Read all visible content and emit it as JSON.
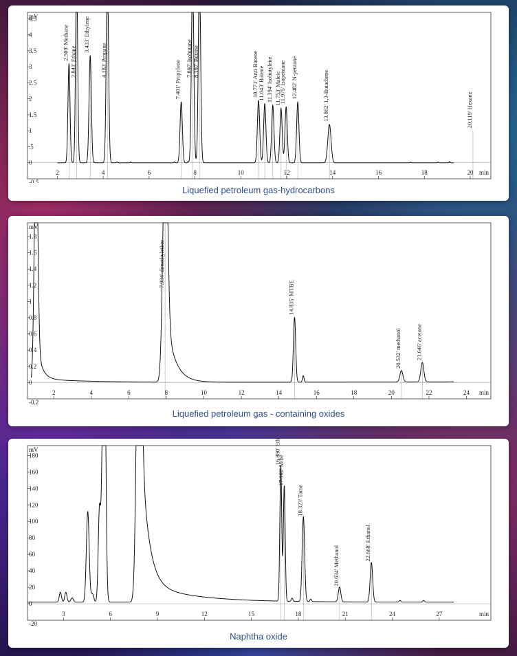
{
  "chart_data": [
    {
      "type": "line",
      "title": "Liquefied petroleum gas-hydrocarbons",
      "ylabel": "mV",
      "xlabel": "min",
      "xlim": [
        0.7,
        20.9
      ],
      "ylim": [
        -0.5,
        4.7
      ],
      "x_ticks": [
        2,
        4,
        6,
        8,
        10,
        12,
        14,
        16,
        18,
        20
      ],
      "y_ticks": [
        0,
        0.5,
        1,
        1.5,
        2,
        2.5,
        3,
        3.5,
        4,
        4.5
      ],
      "y_tick_labels": [
        "0",
        ".5",
        "1",
        "1.5",
        "2",
        "2.5",
        "3",
        "3.5",
        "4",
        "4.5"
      ],
      "y_bottom_label": "-0.5",
      "peaks": [
        {
          "time": 2.509,
          "height": 3.1,
          "width": 0.045,
          "label": "2.509' Methane"
        },
        {
          "time": 2.841,
          "height": 6.0,
          "width": 0.045,
          "label": "2.841' Ethane"
        },
        {
          "time": 3.433,
          "height": 3.35,
          "width": 0.05,
          "label": "3.433' Ethylene"
        },
        {
          "time": 4.183,
          "height": 6.0,
          "width": 0.05,
          "label": "4.183' Propane"
        },
        {
          "time": 7.401,
          "height": 1.9,
          "width": 0.05,
          "label": "7.401' Propylene"
        },
        {
          "time": 7.897,
          "height": 6.0,
          "width": 0.05,
          "label": "7.897' Isobutane"
        },
        {
          "time": 8.197,
          "height": 6.0,
          "width": 0.05,
          "label": "8.197' Butane"
        },
        {
          "time": 10.771,
          "height": 1.95,
          "width": 0.05,
          "label": "10.771' Anti Butene"
        },
        {
          "time": 11.043,
          "height": 1.85,
          "width": 0.05,
          "label": "11.043' Butene"
        },
        {
          "time": 11.394,
          "height": 1.8,
          "width": 0.05,
          "label": "11.394' Isobutylene"
        },
        {
          "time": 11.753,
          "height": 1.7,
          "width": 0.05,
          "label": "11.753' Maleic"
        },
        {
          "time": 11.975,
          "height": 1.75,
          "width": 0.05,
          "label": "11.975' Isopentane"
        },
        {
          "time": 12.482,
          "height": 1.9,
          "width": 0.05,
          "label": "12.482' N-pentane"
        },
        {
          "time": 13.862,
          "height": 1.2,
          "width": 0.07,
          "label": "13.862' 1,3-Butadiene"
        },
        {
          "time": 20.119,
          "height": 1.0,
          "width": 0.1,
          "label": "20.119' Hexane"
        }
      ]
    },
    {
      "type": "line",
      "title": "Liquefied petroleum gas - containing oxides",
      "ylabel": "mV",
      "xlabel": "min",
      "xlim": [
        0.6,
        25.3
      ],
      "ylim": [
        -0.2,
        1.97
      ],
      "x_ticks": [
        2,
        4,
        6,
        8,
        10,
        12,
        14,
        16,
        18,
        20,
        22,
        24
      ],
      "y_ticks": [
        0,
        0.2,
        0.4,
        0.6,
        0.8,
        1,
        1.2,
        1.4,
        1.6,
        1.8
      ],
      "y_tick_labels": [
        "0",
        "0.2",
        "0.4",
        "0.6",
        "0.8",
        "1",
        "1.2",
        "1.4",
        "1.6",
        "1.8"
      ],
      "y_bottom_label": "-0.2",
      "peaks": [
        {
          "time": 7.934,
          "height": 3.0,
          "width": 0.12,
          "label": "7.934' dimethylether"
        },
        {
          "time": 14.835,
          "height": 0.8,
          "width": 0.06,
          "label": "14.835' MTBE"
        },
        {
          "time": 20.532,
          "height": 0.14,
          "width": 0.08,
          "label": "20.532' methanol"
        },
        {
          "time": 21.646,
          "height": 0.24,
          "width": 0.08,
          "label": "21.646' acetone"
        }
      ]
    },
    {
      "type": "line",
      "title": "Naphtha oxide",
      "ylabel": "mV",
      "xlabel": "min",
      "xlim": [
        0.7,
        30.3
      ],
      "ylim": [
        -20,
        192
      ],
      "x_ticks": [
        3,
        6,
        9,
        12,
        15,
        18,
        21,
        24,
        27
      ],
      "y_ticks": [
        0,
        20,
        40,
        60,
        80,
        100,
        120,
        140,
        160,
        180
      ],
      "y_tick_labels": [
        "0",
        "20",
        "40",
        "60",
        "80",
        "100",
        "120",
        "140",
        "160",
        "180"
      ],
      "y_bottom_label": "-20",
      "peaks": [
        {
          "time": 16.88,
          "height": 165,
          "width": 0.06,
          "label": "16.880' Etbe"
        },
        {
          "time": 17.102,
          "height": 140,
          "width": 0.06,
          "label": "17.102' Mtbe"
        },
        {
          "time": 18.323,
          "height": 103,
          "width": 0.08,
          "label": "18.323' Tame"
        },
        {
          "time": 20.634,
          "height": 18,
          "width": 0.08,
          "label": "20.634' Methanol"
        },
        {
          "time": 22.668,
          "height": 48,
          "width": 0.08,
          "label": "22.668' Ethanol"
        }
      ]
    }
  ]
}
